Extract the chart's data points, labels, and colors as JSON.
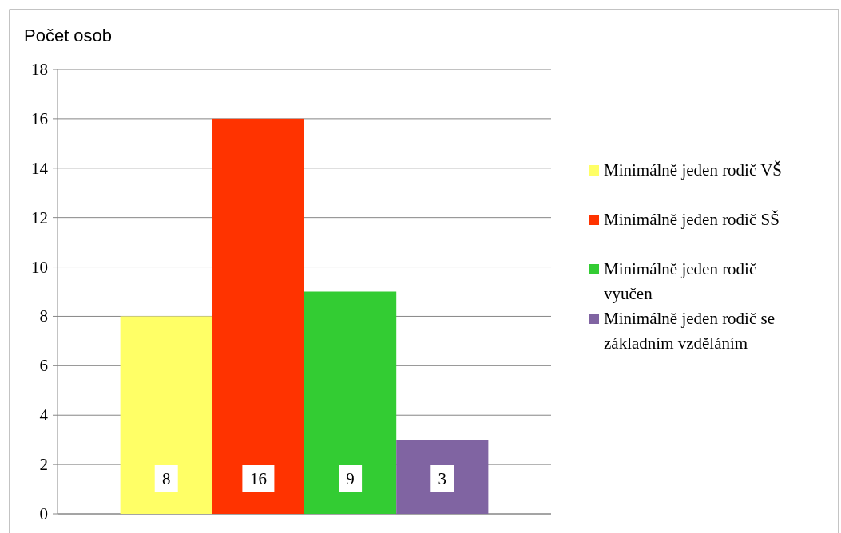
{
  "chart_data": {
    "type": "bar",
    "ylabel": "Počet osob",
    "categories": [
      null
    ],
    "series": [
      {
        "name": "Minimálně jeden rodič VŠ",
        "color": "#ffff66",
        "values": [
          8
        ]
      },
      {
        "name": "Minimálně jeden rodič SŠ",
        "color": "#ff3300",
        "values": [
          16
        ]
      },
      {
        "name": "Minimálně jeden rodič vyučen",
        "color": "#33cc33",
        "values": [
          9
        ]
      },
      {
        "name": "Minimálně jeden rodič se základním vzděláním",
        "color": "#8064a2",
        "values": [
          3
        ]
      }
    ],
    "ylim": [
      0,
      18
    ],
    "yticks": [
      0,
      2,
      4,
      6,
      8,
      10,
      12,
      14,
      16,
      18
    ],
    "grid": "y",
    "legend": "right",
    "data_labels": true,
    "tick_labels": "y"
  }
}
